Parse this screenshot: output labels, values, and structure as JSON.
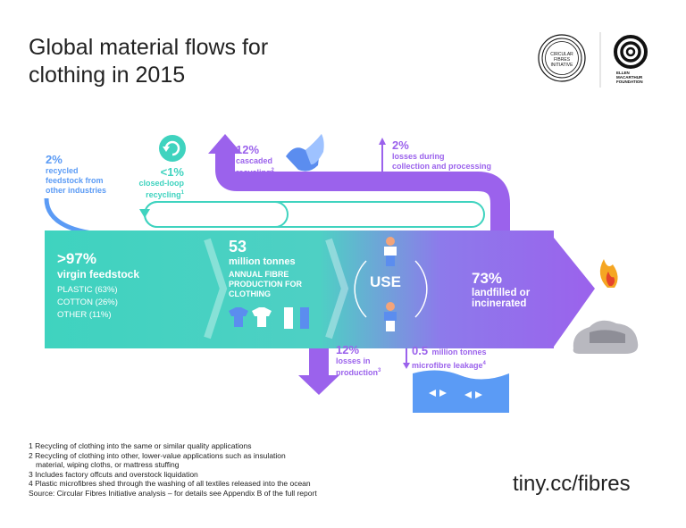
{
  "title_line1": "Global material flows for",
  "title_line2": "clothing in 2015",
  "logos": {
    "cfi": "CIRCULAR FIBRES INITIATIVE",
    "emf": "ELLEN MACARTHUR FOUNDATION"
  },
  "recycled_feedstock": {
    "pct": "2%",
    "line1": "recycled",
    "line2": "feedstock from",
    "line3": "other industries"
  },
  "closed_loop": {
    "pct": "<1%",
    "line1": "closed-loop",
    "line2": "recycling",
    "note": "1"
  },
  "cascaded": {
    "pct": "12%",
    "line1": "cascaded",
    "line2": "recycling",
    "note": "2"
  },
  "collection_losses": {
    "pct": "2%",
    "line1": "losses during",
    "line2": "collection and processing"
  },
  "virgin": {
    "pct": ">97%",
    "label": "virgin feedstock",
    "items": [
      "PLASTIC (63%)",
      "COTTON (26%)",
      "OTHER (11%)"
    ]
  },
  "production": {
    "value": "53",
    "unit": "million tonnes",
    "line1": "ANNUAL FIBRE",
    "line2": "PRODUCTION FOR",
    "line3": "CLOTHING"
  },
  "use_label": "USE",
  "landfill": {
    "pct": "73%",
    "line1": "landfilled or",
    "line2": "incinerated"
  },
  "production_losses": {
    "pct": "12%",
    "line1": "losses in",
    "line2": "production",
    "note": "3"
  },
  "microfibre": {
    "value": "0.5",
    "unit": "million tonnes",
    "line2": "microfibre leakage",
    "note": "4"
  },
  "footnotes": [
    "1 Recycling of clothing into the same or similar quality applications",
    "2 Recycling of clothing into other, lower-value applications such as insulation",
    "   material, wiping cloths, or mattress stuffing",
    "3 Includes factory offcuts and overstock liquidation",
    "4 Plastic microfibres shed through the washing of all textiles released into the ocean",
    "Source: Circular Fibres Initiative analysis – for details see Appendix B of the full report"
  ],
  "url": "tiny.cc/fibres",
  "colors": {
    "teal": "#3fd3bf",
    "purple": "#9b62ec",
    "blue": "#5b9bf5"
  }
}
